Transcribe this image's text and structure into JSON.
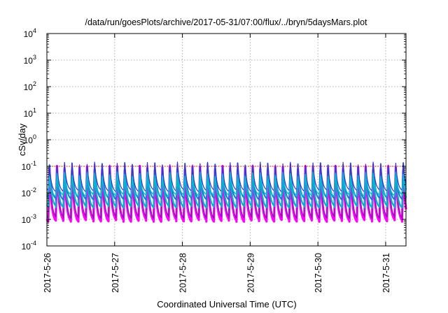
{
  "chart_data": {
    "type": "line",
    "title": "/data/run/goesPlots/archive/2017-05-31/07:00/flux/../bryn/5daysMars.plot",
    "xlabel": "Coordinated Universal Time (UTC)",
    "ylabel": "cSv/day",
    "y_scale": "log",
    "ylim_exp": [
      -4,
      4
    ],
    "y_ticks": [
      {
        "base": "10",
        "exp": "-4"
      },
      {
        "base": "10",
        "exp": "-3"
      },
      {
        "base": "10",
        "exp": "-2"
      },
      {
        "base": "10",
        "exp": "-1"
      },
      {
        "base": "10",
        "exp": "0"
      },
      {
        "base": "10",
        "exp": "1"
      },
      {
        "base": "10",
        "exp": "2"
      },
      {
        "base": "10",
        "exp": "3"
      },
      {
        "base": "10",
        "exp": "4"
      }
    ],
    "x_ticks": [
      "2017-5-26",
      "2017-5-27",
      "2017-5-28",
      "2017-5-29",
      "2017-5-30",
      "2017-5-31"
    ],
    "xlim_days": [
      0,
      5.3
    ],
    "grid": true,
    "reference_line": {
      "value": 0.1,
      "color": "#ff0000"
    },
    "sawtooth": {
      "cycles_per_day": 9,
      "phase_days": 0.02
    },
    "series": [
      {
        "color": "#ff00ff",
        "width": 3.2,
        "peak": 0.085,
        "trough": 0.0009
      },
      {
        "color": "#7a1fa2",
        "width": 1.2,
        "peak": 0.095,
        "trough": 0.0012
      },
      {
        "color": "#00b4c8",
        "width": 2.2,
        "peak": 0.07,
        "trough": 0.003
      },
      {
        "color": "#2a6fd6",
        "width": 2.0,
        "peak": 0.11,
        "trough": 0.006
      },
      {
        "color": "#3c2fd0",
        "width": 1.2,
        "peak": 0.12,
        "trough": 0.012
      },
      {
        "color": "#00c0d0",
        "width": 1.5,
        "peak": 0.05,
        "trough": 0.008
      }
    ]
  }
}
